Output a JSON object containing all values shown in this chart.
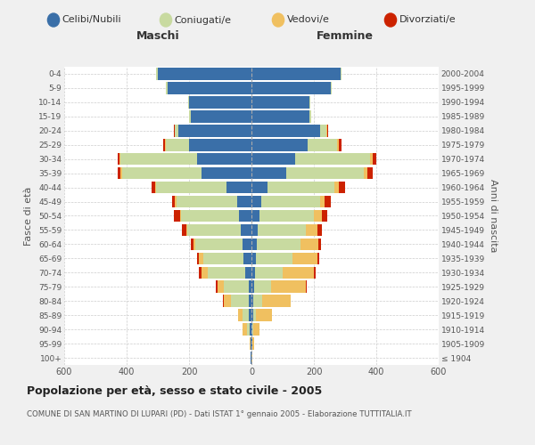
{
  "age_groups": [
    "100+",
    "95-99",
    "90-94",
    "85-89",
    "80-84",
    "75-79",
    "70-74",
    "65-69",
    "60-64",
    "55-59",
    "50-54",
    "45-49",
    "40-44",
    "35-39",
    "30-34",
    "25-29",
    "20-24",
    "15-19",
    "10-14",
    "5-9",
    "0-4"
  ],
  "birth_years": [
    "≤ 1904",
    "1905-1909",
    "1910-1914",
    "1915-1919",
    "1920-1924",
    "1925-1929",
    "1930-1934",
    "1935-1939",
    "1940-1944",
    "1945-1949",
    "1950-1954",
    "1955-1959",
    "1960-1964",
    "1965-1969",
    "1970-1974",
    "1975-1979",
    "1980-1984",
    "1985-1989",
    "1990-1994",
    "1995-1999",
    "2000-2004"
  ],
  "maschi": {
    "celibi": [
      2,
      2,
      5,
      8,
      10,
      10,
      20,
      25,
      30,
      35,
      40,
      45,
      80,
      160,
      175,
      200,
      235,
      195,
      200,
      270,
      300
    ],
    "coniugati": [
      0,
      2,
      8,
      20,
      55,
      80,
      120,
      130,
      150,
      170,
      185,
      195,
      225,
      255,
      245,
      75,
      10,
      5,
      2,
      5,
      5
    ],
    "vedovi": [
      0,
      3,
      15,
      15,
      25,
      20,
      20,
      15,
      5,
      5,
      5,
      5,
      5,
      5,
      3,
      3,
      2,
      0,
      0,
      0,
      0
    ],
    "divorziati": [
      0,
      0,
      0,
      0,
      2,
      5,
      8,
      5,
      8,
      12,
      18,
      8,
      10,
      8,
      5,
      5,
      2,
      0,
      0,
      0,
      0
    ]
  },
  "femmine": {
    "nubili": [
      0,
      2,
      2,
      5,
      5,
      8,
      10,
      15,
      18,
      20,
      25,
      30,
      50,
      110,
      140,
      180,
      220,
      185,
      185,
      255,
      285
    ],
    "coniugate": [
      0,
      2,
      5,
      10,
      30,
      55,
      90,
      115,
      140,
      155,
      175,
      190,
      215,
      250,
      240,
      95,
      20,
      5,
      3,
      3,
      3
    ],
    "vedove": [
      2,
      5,
      20,
      50,
      90,
      110,
      100,
      80,
      55,
      35,
      25,
      15,
      15,
      10,
      8,
      5,
      2,
      0,
      0,
      0,
      0
    ],
    "divorziate": [
      0,
      0,
      0,
      2,
      2,
      3,
      5,
      8,
      10,
      15,
      18,
      18,
      20,
      18,
      12,
      8,
      3,
      0,
      0,
      0,
      0
    ]
  },
  "colors": {
    "celibi_nubili": "#3a6fa8",
    "coniugati": "#c8daa0",
    "vedovi": "#f0c060",
    "divorziati": "#cc2200"
  },
  "xlim": 600,
  "title": "Popolazione per età, sesso e stato civile - 2005",
  "subtitle": "COMUNE DI SAN MARTINO DI LUPARI (PD) - Dati ISTAT 1° gennaio 2005 - Elaborazione TUTTITALIA.IT",
  "ylabel_left": "Fasce di età",
  "ylabel_right": "Anni di nascita",
  "header_left": "Maschi",
  "header_right": "Femmine",
  "bg_color": "#f0f0f0",
  "plot_bg": "#ffffff"
}
